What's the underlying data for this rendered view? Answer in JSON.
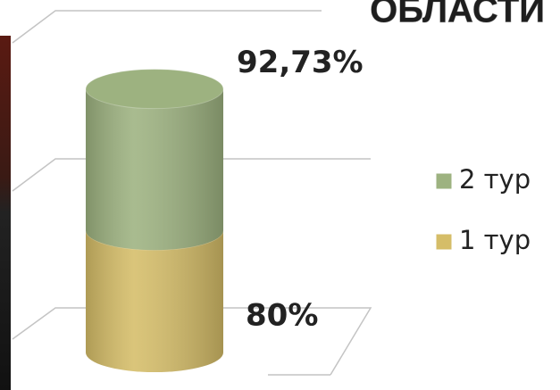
{
  "chart_data": {
    "type": "bar",
    "stacked": true,
    "title": "ОБЛАСТИ",
    "categories": [
      null
    ],
    "ylim": [
      0,
      200
    ],
    "series": [
      {
        "name": "1 тур",
        "color": "#d5bd68",
        "values": [
          80
        ],
        "value_labels": [
          "80%"
        ]
      },
      {
        "name": "2 тур",
        "color": "#9db280",
        "values": [
          92.73
        ],
        "value_labels": [
          "92,73%"
        ]
      }
    ],
    "legend": "right"
  }
}
